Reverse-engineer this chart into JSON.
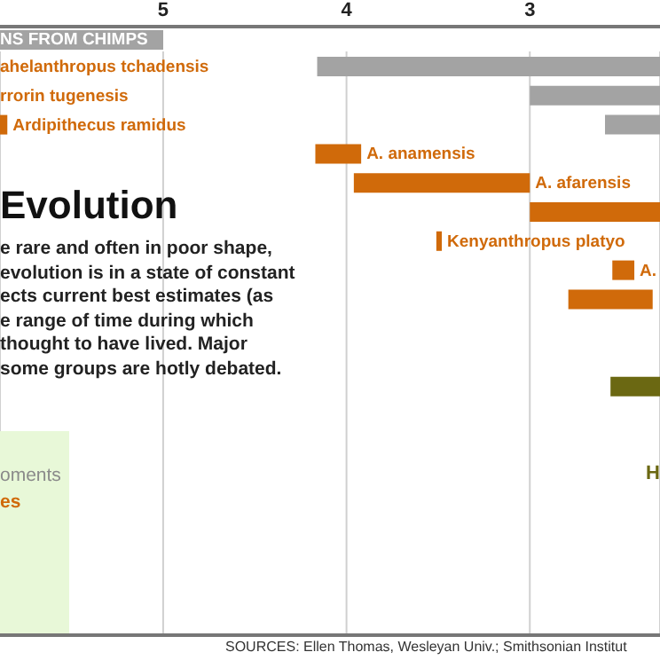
{
  "chart_data": {
    "type": "bar",
    "orientation": "horizontal",
    "title": "Evolution",
    "categories": [
      "ahelanthropus tchadensis",
      "rrorin tugenesis",
      "Ardipithecus ramidus",
      "A. anamensis",
      "A. afarensis",
      null,
      "Kenyanthropus platyo",
      "A.",
      null,
      null,
      null,
      null,
      null,
      null,
      null,
      null,
      null,
      null,
      null,
      null
    ],
    "series": [
      {
        "color": "#a3a3a3",
        "values": [
          1.87,
          0.71,
          0.3,
          null,
          null,
          null,
          null,
          null,
          null,
          null,
          null,
          null,
          null,
          null,
          null,
          null,
          null,
          null,
          null,
          null
        ],
        "base": [
          2.29,
          2.29,
          2.29,
          null,
          null,
          null,
          null,
          null,
          null,
          null,
          null,
          null,
          null,
          null,
          null,
          null,
          null,
          null,
          null,
          null
        ]
      },
      {
        "color": "#d06a0a",
        "values": [
          null,
          null,
          0.04,
          0.25,
          0.96,
          0.71,
          0.03,
          0.12,
          0.46,
          null,
          null,
          null,
          null,
          null,
          null,
          null,
          null,
          null,
          null,
          null
        ],
        "base": [
          null,
          null,
          5.85,
          3.92,
          3.0,
          2.29,
          3.48,
          2.43,
          2.33,
          null,
          null,
          null,
          null,
          null,
          null,
          null,
          null,
          null,
          null,
          null
        ]
      },
      {
        "color": "#6b6812",
        "values": [
          null,
          null,
          null,
          null,
          null,
          null,
          null,
          null,
          null,
          null,
          null,
          0.27,
          null,
          null,
          null,
          null,
          null,
          null,
          null,
          null
        ],
        "base": [
          null,
          null,
          null,
          null,
          null,
          null,
          null,
          null,
          null,
          null,
          null,
          2.29,
          null,
          null,
          null,
          null,
          null,
          null,
          null,
          null
        ]
      }
    ],
    "xlim": [
      5.89,
      2.29
    ],
    "xticks": [
      5,
      4,
      3
    ],
    "grid": "x",
    "legend": false,
    "annotations": [
      "NS FROM CHIMPS",
      "e rare and often in poor shape,",
      "evolution is in a state of constant",
      "ects current best estimates (as",
      "e range of time during which",
      "thought to have lived. Major",
      "some groups are hotly debated.",
      "oments",
      "es",
      "H",
      "SOURCES: Ellen Thomas, Wesleyan Univ.; Smithsonian Institut"
    ]
  }
}
